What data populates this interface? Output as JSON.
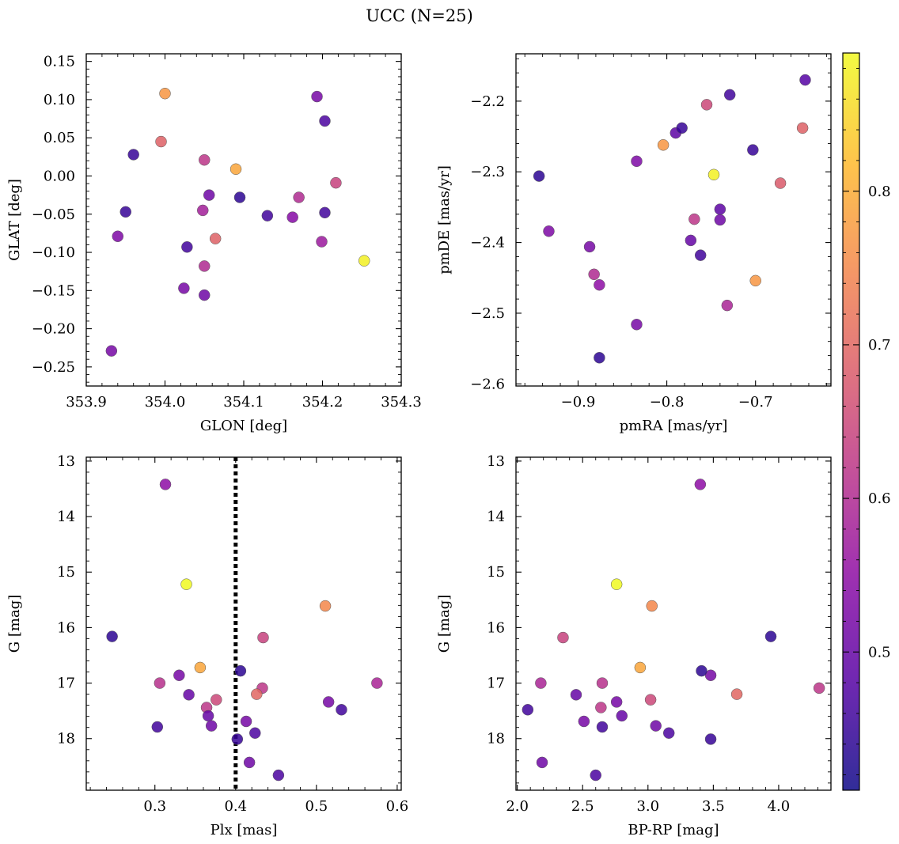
{
  "figure": {
    "title": "UCC (N=25)"
  },
  "colorbar": {
    "cmap": "plasma",
    "vmin": 0.41,
    "vmax": 0.89,
    "ticks": [
      0.5,
      0.6,
      0.7,
      0.8
    ],
    "tick_labels": [
      "0.5",
      "0.6",
      "0.7",
      "0.8"
    ]
  },
  "chart_data": [
    {
      "type": "scatter",
      "panel": "top-left",
      "xlabel": "GLON [deg]",
      "ylabel": "GLAT [deg]",
      "xlim": [
        353.9,
        354.3
      ],
      "ylim": [
        -0.275,
        0.16
      ],
      "y_inverted": false,
      "xticks": [
        353.9,
        354.0,
        354.1,
        354.2,
        354.3
      ],
      "xtick_labels": [
        "353.9",
        "354.0",
        "354.1",
        "354.2",
        "354.3"
      ],
      "yticks": [
        -0.25,
        -0.2,
        -0.15,
        -0.1,
        -0.05,
        0.0,
        0.05,
        0.1,
        0.15
      ],
      "ytick_labels": [
        "−0.25",
        "−0.20",
        "−0.15",
        "−0.10",
        "−0.05",
        "0.00",
        "0.05",
        "0.10",
        "0.15"
      ],
      "x": [
        354.0,
        353.995,
        353.96,
        353.95,
        353.94,
        354.05,
        354.09,
        354.056,
        354.048,
        354.064,
        354.028,
        354.024,
        354.05,
        354.05,
        354.095,
        354.13,
        354.162,
        354.17,
        354.193,
        354.203,
        354.203,
        354.199,
        354.217,
        354.253,
        353.932
      ],
      "y": [
        0.108,
        0.045,
        0.028,
        -0.047,
        -0.079,
        0.021,
        0.009,
        -0.025,
        -0.045,
        -0.082,
        -0.093,
        -0.147,
        -0.118,
        -0.156,
        -0.028,
        -0.052,
        -0.054,
        -0.028,
        0.104,
        0.072,
        -0.048,
        -0.086,
        -0.009,
        -0.111,
        -0.229
      ],
      "color": [
        0.77,
        0.69,
        0.45,
        0.45,
        0.53,
        0.62,
        0.79,
        0.51,
        0.58,
        0.69,
        0.46,
        0.52,
        0.6,
        0.51,
        0.44,
        0.46,
        0.54,
        0.6,
        0.52,
        0.47,
        0.46,
        0.57,
        0.64,
        0.88,
        0.52
      ]
    },
    {
      "type": "scatter",
      "panel": "top-right",
      "xlabel": "pmRA [mas/yr]",
      "ylabel": "pmDE [mas/yr]",
      "xlim": [
        -0.97,
        -0.615
      ],
      "ylim": [
        -2.603,
        -2.133
      ],
      "y_inverted": false,
      "xticks": [
        -0.9,
        -0.8,
        -0.7
      ],
      "xtick_labels": [
        "−0.9",
        "−0.8",
        "−0.7"
      ],
      "yticks": [
        -2.6,
        -2.5,
        -2.4,
        -2.3,
        -2.2
      ],
      "ytick_labels": [
        "−2.6",
        "−2.5",
        "−2.4",
        "−2.3",
        "−2.2"
      ],
      "x": [
        -0.944,
        -0.933,
        -0.887,
        -0.882,
        -0.876,
        -0.876,
        -0.834,
        -0.834,
        -0.79,
        -0.783,
        -0.804,
        -0.755,
        -0.773,
        -0.769,
        -0.762,
        -0.74,
        -0.74,
        -0.747,
        -0.729,
        -0.732,
        -0.703,
        -0.7,
        -0.672,
        -0.647,
        -0.644
      ],
      "y": [
        -2.306,
        -2.384,
        -2.406,
        -2.445,
        -2.46,
        -2.563,
        -2.285,
        -2.516,
        -2.245,
        -2.238,
        -2.262,
        -2.205,
        -2.397,
        -2.367,
        -2.418,
        -2.353,
        -2.368,
        -2.304,
        -2.191,
        -2.489,
        -2.269,
        -2.454,
        -2.316,
        -2.238,
        -2.17
      ],
      "color": [
        0.44,
        0.53,
        0.52,
        0.6,
        0.55,
        0.44,
        0.53,
        0.52,
        0.49,
        0.45,
        0.77,
        0.65,
        0.5,
        0.62,
        0.46,
        0.49,
        0.51,
        0.88,
        0.46,
        0.59,
        0.45,
        0.77,
        0.68,
        0.69,
        0.48
      ]
    },
    {
      "type": "scatter",
      "panel": "bottom-left",
      "xlabel": "Plx [mas]",
      "ylabel": "G [mag]",
      "xlim": [
        0.215,
        0.605
      ],
      "ylim": [
        18.93,
        12.93
      ],
      "y_inverted": true,
      "xticks": [
        0.3,
        0.4,
        0.5,
        0.6
      ],
      "xtick_labels": [
        "0.3",
        "0.4",
        "0.5",
        "0.6"
      ],
      "yticks": [
        13,
        14,
        15,
        16,
        17,
        18
      ],
      "ytick_labels": [
        "13",
        "14",
        "15",
        "16",
        "17",
        "18"
      ],
      "vline": {
        "x": 0.4,
        "style": "dotted"
      },
      "x": [
        0.313,
        0.339,
        0.247,
        0.511,
        0.434,
        0.356,
        0.306,
        0.33,
        0.406,
        0.433,
        0.426,
        0.342,
        0.376,
        0.364,
        0.366,
        0.37,
        0.303,
        0.515,
        0.531,
        0.575,
        0.402,
        0.413,
        0.424,
        0.417,
        0.453
      ],
      "y": [
        13.42,
        15.22,
        16.16,
        15.61,
        16.18,
        16.72,
        17.0,
        16.86,
        16.78,
        17.09,
        17.2,
        17.21,
        17.3,
        17.44,
        17.59,
        17.77,
        17.79,
        17.34,
        17.48,
        17.0,
        18.01,
        17.69,
        17.9,
        18.43,
        18.66
      ],
      "color": [
        0.55,
        0.89,
        0.44,
        0.75,
        0.64,
        0.79,
        0.61,
        0.52,
        0.44,
        0.62,
        0.7,
        0.5,
        0.65,
        0.62,
        0.5,
        0.51,
        0.46,
        0.52,
        0.46,
        0.59,
        0.45,
        0.52,
        0.47,
        0.51,
        0.47
      ]
    },
    {
      "type": "scatter",
      "panel": "bottom-right",
      "xlabel": "BP-RP [mag]",
      "ylabel": "G [mag]",
      "xlim": [
        1.99,
        4.4
      ],
      "ylim": [
        18.93,
        12.93
      ],
      "y_inverted": true,
      "xticks": [
        2.0,
        2.5,
        3.0,
        3.5,
        4.0
      ],
      "xtick_labels": [
        "2.0",
        "2.5",
        "3.0",
        "3.5",
        "4.0"
      ],
      "yticks": [
        13,
        14,
        15,
        16,
        17,
        18
      ],
      "ytick_labels": [
        "13",
        "14",
        "15",
        "16",
        "17",
        "18"
      ],
      "x": [
        3.4,
        2.76,
        3.94,
        3.03,
        2.35,
        2.94,
        2.65,
        3.48,
        3.41,
        4.31,
        3.68,
        2.45,
        3.02,
        2.64,
        2.8,
        3.06,
        2.65,
        2.76,
        2.08,
        2.18,
        3.48,
        2.51,
        3.16,
        2.19,
        2.6
      ],
      "y": [
        13.42,
        15.22,
        16.16,
        15.61,
        16.18,
        16.72,
        17.0,
        16.86,
        16.78,
        17.09,
        17.2,
        17.21,
        17.3,
        17.44,
        17.59,
        17.77,
        17.79,
        17.34,
        17.48,
        17.0,
        18.01,
        17.69,
        17.9,
        18.43,
        18.66
      ],
      "color": [
        0.55,
        0.89,
        0.44,
        0.75,
        0.64,
        0.79,
        0.61,
        0.52,
        0.44,
        0.62,
        0.7,
        0.5,
        0.65,
        0.62,
        0.5,
        0.51,
        0.46,
        0.52,
        0.46,
        0.59,
        0.45,
        0.52,
        0.47,
        0.51,
        0.47
      ]
    }
  ]
}
